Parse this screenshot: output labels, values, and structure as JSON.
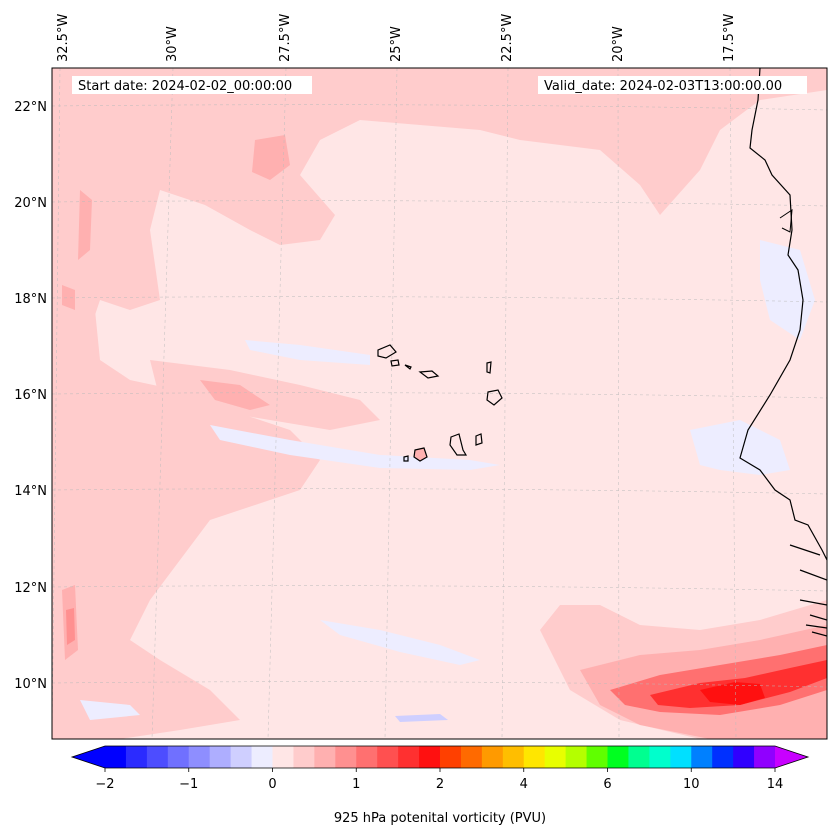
{
  "header": {
    "start_date": "Start date: 2024-02-02_00:00:00",
    "valid_date": "Valid_date: 2024-02-03T13:00:00.00"
  },
  "map": {
    "lon_labels": [
      "32.5°W",
      "30°W",
      "27.5°W",
      "25°W",
      "22.5°W",
      "20°W",
      "17.5°W"
    ],
    "lat_labels": [
      "22°N",
      "20°N",
      "18°N",
      "16°N",
      "14°N",
      "12°N",
      "10°N"
    ]
  },
  "colorbar": {
    "label": "925 hPa potenital vorticity (PVU)",
    "ticks": [
      "−2",
      "−1",
      "0",
      "1",
      "2",
      "4",
      "6",
      "10",
      "14"
    ],
    "colors": [
      "#0000ff",
      "#2b2bff",
      "#4d4dff",
      "#7070ff",
      "#8e8eff",
      "#aeaeff",
      "#cfcfff",
      "#ededff",
      "#ffe6e6",
      "#ffcccc",
      "#ffb0b0",
      "#ff9090",
      "#ff7070",
      "#ff5050",
      "#ff3030",
      "#ff1010",
      "#ff4000",
      "#ff6a00",
      "#ff9a00",
      "#ffbe00",
      "#ffe600",
      "#e8ff00",
      "#b4ff00",
      "#60ff00",
      "#00ff20",
      "#00ff90",
      "#00ffcc",
      "#00e0ff",
      "#0080ff",
      "#0030ff",
      "#3000ff",
      "#9000ff"
    ],
    "under_color": "#0000ff",
    "over_color": "#c800ff"
  },
  "legend_colors": {
    "background_field": "#ffe6e6",
    "light_positive": "#ffcccc",
    "mid_positive": "#ffb0b0",
    "strong_positive": "#ff5050",
    "peak_positive": "#ff1a1a",
    "light_negative": "#ededff",
    "mid_negative": "#cfcfff"
  }
}
